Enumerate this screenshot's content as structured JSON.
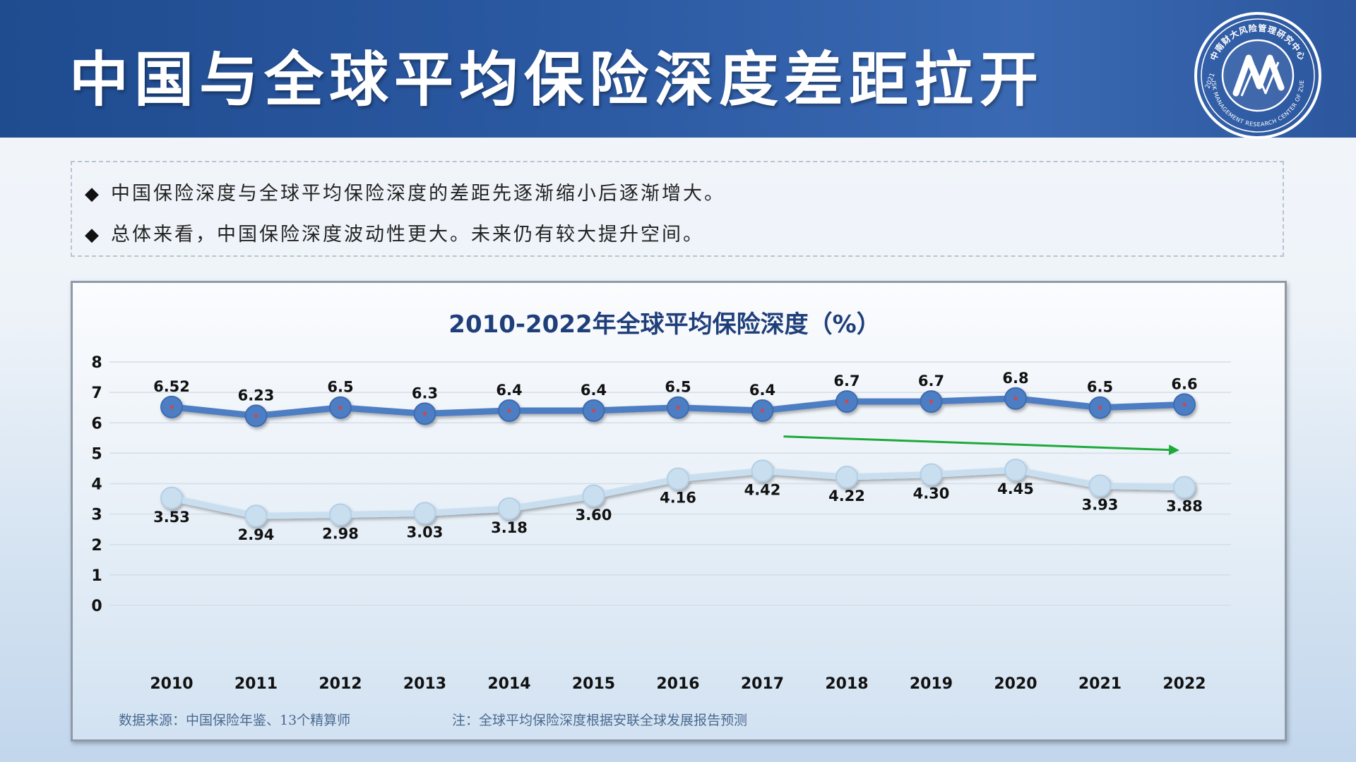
{
  "header": {
    "title": "中国与全球平均保险深度差距拉开"
  },
  "logo": {
    "icon": "research-center-seal-icon",
    "text_top": "中南财大风险管理研究中心",
    "text_bottom": "RISK MANAGEMENT RESEARCH CENTER OF ZUEL",
    "year": "2021"
  },
  "notes": [
    "中国保险深度与全球平均保险深度的差距先逐渐缩小后逐渐增大。",
    "总体来看，中国保险深度波动性更大。未来仍有较大提升空间。"
  ],
  "colors": {
    "global_series": "#4d7dc2",
    "china_series": "#c9dff0",
    "trend_arrow": "#1daa3a",
    "title": "#1f3f7a"
  },
  "chart_data": {
    "type": "line",
    "title": "2010-2022年全球平均保险深度（%）",
    "x": [
      "2010",
      "2011",
      "2012",
      "2013",
      "2014",
      "2015",
      "2016",
      "2017",
      "2018",
      "2019",
      "2020",
      "2021",
      "2022"
    ],
    "series": [
      {
        "values": [
          6.52,
          6.23,
          6.5,
          6.3,
          6.4,
          6.4,
          6.5,
          6.4,
          6.7,
          6.7,
          6.8,
          6.5,
          6.6
        ],
        "labels": [
          "6.52",
          "6.23",
          "6.5",
          "6.3",
          "6.4",
          "6.4",
          "6.5",
          "6.4",
          "6.7",
          "6.7",
          "6.8",
          "6.5",
          "6.6"
        ]
      },
      {
        "values": [
          3.53,
          2.94,
          2.98,
          3.03,
          3.18,
          3.6,
          4.16,
          4.42,
          4.22,
          4.3,
          4.45,
          3.93,
          3.88
        ],
        "labels": [
          "3.53",
          "2.94",
          "2.98",
          "3.03",
          "3.18",
          "3.60",
          "4.16",
          "4.42",
          "4.22",
          "4.30",
          "4.45",
          "3.93",
          "3.88"
        ]
      }
    ],
    "ylim": [
      0,
      8
    ],
    "yticks": [
      "0",
      "1",
      "2",
      "3",
      "4",
      "5",
      "6",
      "7",
      "8"
    ],
    "grid": true,
    "annotation": {
      "type": "arrow",
      "from": {
        "x": "2017",
        "y": 5.55
      },
      "to": {
        "x": "2022",
        "y": 5.1
      }
    }
  },
  "footnotes": {
    "source": "数据来源：中国保险年鉴、13个精算师",
    "note": "注：全球平均保险深度根据安联全球发展报告预测"
  }
}
